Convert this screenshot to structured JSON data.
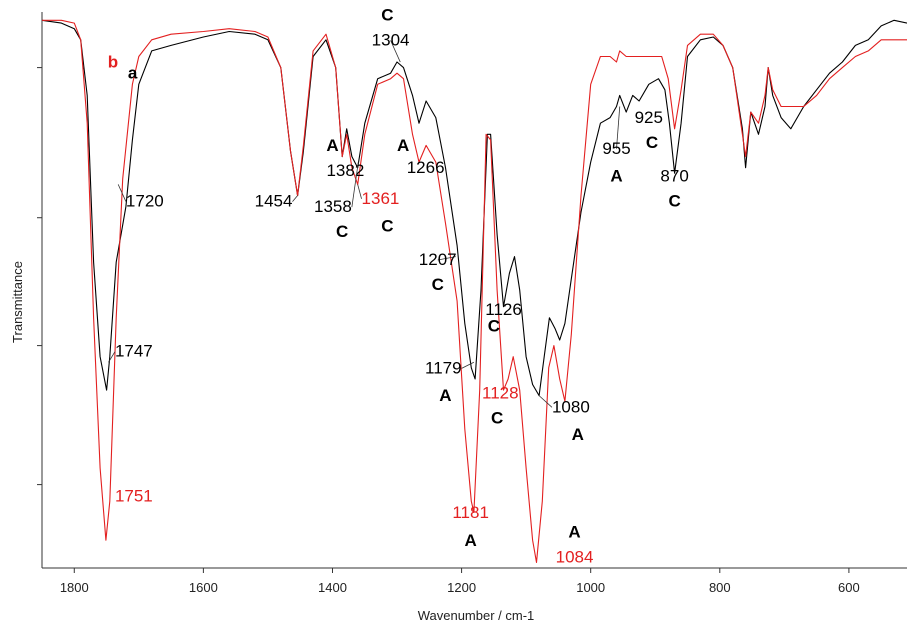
{
  "chart_data": {
    "type": "line",
    "xlabel": "Wavenumber / cm-1",
    "ylabel": "Transmittance",
    "xlim": [
      1850,
      510
    ],
    "x_reversed": true,
    "ylim": [
      0,
      1
    ],
    "y_tick_labels_shown": false,
    "grid": false,
    "x_ticks": [
      1800,
      1600,
      1400,
      1200,
      1000,
      800,
      600
    ],
    "series": [
      {
        "name": "a",
        "color": "#000000",
        "points": [
          [
            1850,
            0.015
          ],
          [
            1820,
            0.02
          ],
          [
            1800,
            0.03
          ],
          [
            1790,
            0.05
          ],
          [
            1780,
            0.15
          ],
          [
            1770,
            0.45
          ],
          [
            1760,
            0.62
          ],
          [
            1750,
            0.68
          ],
          [
            1745,
            0.62
          ],
          [
            1735,
            0.45
          ],
          [
            1720,
            0.35
          ],
          [
            1710,
            0.23
          ],
          [
            1700,
            0.13
          ],
          [
            1680,
            0.07
          ],
          [
            1650,
            0.06
          ],
          [
            1600,
            0.045
          ],
          [
            1560,
            0.035
          ],
          [
            1520,
            0.04
          ],
          [
            1500,
            0.05
          ],
          [
            1480,
            0.1
          ],
          [
            1465,
            0.25
          ],
          [
            1454,
            0.33
          ],
          [
            1445,
            0.25
          ],
          [
            1430,
            0.08
          ],
          [
            1410,
            0.05
          ],
          [
            1395,
            0.1
          ],
          [
            1385,
            0.26
          ],
          [
            1378,
            0.21
          ],
          [
            1370,
            0.26
          ],
          [
            1361,
            0.28
          ],
          [
            1350,
            0.2
          ],
          [
            1330,
            0.12
          ],
          [
            1310,
            0.11
          ],
          [
            1300,
            0.09
          ],
          [
            1290,
            0.1
          ],
          [
            1276,
            0.15
          ],
          [
            1266,
            0.2
          ],
          [
            1255,
            0.16
          ],
          [
            1240,
            0.19
          ],
          [
            1225,
            0.28
          ],
          [
            1207,
            0.42
          ],
          [
            1195,
            0.56
          ],
          [
            1185,
            0.64
          ],
          [
            1179,
            0.66
          ],
          [
            1170,
            0.5
          ],
          [
            1160,
            0.22
          ],
          [
            1155,
            0.22
          ],
          [
            1145,
            0.4
          ],
          [
            1135,
            0.53
          ],
          [
            1126,
            0.47
          ],
          [
            1118,
            0.44
          ],
          [
            1110,
            0.5
          ],
          [
            1100,
            0.62
          ],
          [
            1090,
            0.67
          ],
          [
            1080,
            0.69
          ],
          [
            1072,
            0.62
          ],
          [
            1064,
            0.55
          ],
          [
            1055,
            0.57
          ],
          [
            1048,
            0.59
          ],
          [
            1040,
            0.56
          ],
          [
            1030,
            0.48
          ],
          [
            1015,
            0.36
          ],
          [
            1000,
            0.27
          ],
          [
            985,
            0.2
          ],
          [
            970,
            0.19
          ],
          [
            960,
            0.17
          ],
          [
            955,
            0.15
          ],
          [
            945,
            0.18
          ],
          [
            935,
            0.15
          ],
          [
            925,
            0.16
          ],
          [
            910,
            0.13
          ],
          [
            895,
            0.12
          ],
          [
            885,
            0.14
          ],
          [
            878,
            0.2
          ],
          [
            870,
            0.29
          ],
          [
            860,
            0.2
          ],
          [
            850,
            0.08
          ],
          [
            830,
            0.05
          ],
          [
            810,
            0.045
          ],
          [
            795,
            0.06
          ],
          [
            780,
            0.1
          ],
          [
            765,
            0.21
          ],
          [
            760,
            0.28
          ],
          [
            752,
            0.18
          ],
          [
            740,
            0.22
          ],
          [
            730,
            0.17
          ],
          [
            725,
            0.1
          ],
          [
            718,
            0.15
          ],
          [
            705,
            0.19
          ],
          [
            690,
            0.21
          ],
          [
            670,
            0.17
          ],
          [
            650,
            0.14
          ],
          [
            630,
            0.11
          ],
          [
            610,
            0.09
          ],
          [
            590,
            0.06
          ],
          [
            570,
            0.05
          ],
          [
            550,
            0.025
          ],
          [
            530,
            0.015
          ],
          [
            510,
            0.02
          ]
        ]
      },
      {
        "name": "b",
        "color": "#e32020",
        "points": [
          [
            1850,
            0.015
          ],
          [
            1820,
            0.015
          ],
          [
            1800,
            0.02
          ],
          [
            1790,
            0.05
          ],
          [
            1780,
            0.2
          ],
          [
            1770,
            0.55
          ],
          [
            1760,
            0.82
          ],
          [
            1751,
            0.95
          ],
          [
            1745,
            0.88
          ],
          [
            1735,
            0.55
          ],
          [
            1725,
            0.3
          ],
          [
            1710,
            0.13
          ],
          [
            1700,
            0.08
          ],
          [
            1680,
            0.05
          ],
          [
            1650,
            0.04
          ],
          [
            1600,
            0.035
          ],
          [
            1560,
            0.03
          ],
          [
            1520,
            0.035
          ],
          [
            1500,
            0.045
          ],
          [
            1480,
            0.1
          ],
          [
            1465,
            0.25
          ],
          [
            1454,
            0.33
          ],
          [
            1445,
            0.24
          ],
          [
            1430,
            0.07
          ],
          [
            1410,
            0.04
          ],
          [
            1395,
            0.1
          ],
          [
            1385,
            0.26
          ],
          [
            1378,
            0.22
          ],
          [
            1370,
            0.28
          ],
          [
            1361,
            0.31
          ],
          [
            1350,
            0.22
          ],
          [
            1330,
            0.13
          ],
          [
            1310,
            0.12
          ],
          [
            1300,
            0.11
          ],
          [
            1290,
            0.12
          ],
          [
            1276,
            0.22
          ],
          [
            1266,
            0.27
          ],
          [
            1255,
            0.24
          ],
          [
            1240,
            0.27
          ],
          [
            1225,
            0.38
          ],
          [
            1207,
            0.52
          ],
          [
            1195,
            0.75
          ],
          [
            1185,
            0.88
          ],
          [
            1181,
            0.9
          ],
          [
            1172,
            0.68
          ],
          [
            1162,
            0.22
          ],
          [
            1155,
            0.23
          ],
          [
            1145,
            0.5
          ],
          [
            1135,
            0.68
          ],
          [
            1128,
            0.66
          ],
          [
            1120,
            0.62
          ],
          [
            1110,
            0.68
          ],
          [
            1100,
            0.82
          ],
          [
            1090,
            0.95
          ],
          [
            1084,
            0.99
          ],
          [
            1075,
            0.88
          ],
          [
            1065,
            0.64
          ],
          [
            1057,
            0.6
          ],
          [
            1048,
            0.66
          ],
          [
            1040,
            0.7
          ],
          [
            1030,
            0.58
          ],
          [
            1015,
            0.33
          ],
          [
            1000,
            0.13
          ],
          [
            985,
            0.08
          ],
          [
            970,
            0.08
          ],
          [
            960,
            0.09
          ],
          [
            955,
            0.07
          ],
          [
            945,
            0.08
          ],
          [
            930,
            0.08
          ],
          [
            915,
            0.08
          ],
          [
            900,
            0.08
          ],
          [
            890,
            0.08
          ],
          [
            880,
            0.12
          ],
          [
            870,
            0.21
          ],
          [
            860,
            0.14
          ],
          [
            850,
            0.06
          ],
          [
            830,
            0.04
          ],
          [
            810,
            0.04
          ],
          [
            795,
            0.06
          ],
          [
            780,
            0.1
          ],
          [
            765,
            0.22
          ],
          [
            760,
            0.26
          ],
          [
            752,
            0.18
          ],
          [
            740,
            0.2
          ],
          [
            730,
            0.15
          ],
          [
            725,
            0.1
          ],
          [
            718,
            0.14
          ],
          [
            705,
            0.17
          ],
          [
            690,
            0.17
          ],
          [
            670,
            0.17
          ],
          [
            650,
            0.15
          ],
          [
            630,
            0.12
          ],
          [
            610,
            0.1
          ],
          [
            590,
            0.08
          ],
          [
            570,
            0.07
          ],
          [
            550,
            0.05
          ],
          [
            530,
            0.05
          ],
          [
            510,
            0.05
          ]
        ]
      }
    ],
    "annotations": [
      {
        "text": "b",
        "color": "#e32020",
        "bold": true,
        "x": 1732,
        "y": 0.1,
        "anchor": "end",
        "plain": true
      },
      {
        "text": "a",
        "color": "#000000",
        "bold": true,
        "x": 1717,
        "y": 0.12,
        "anchor": "start",
        "plain": true
      },
      {
        "text": "1720",
        "color": "#000000",
        "bold": false,
        "x": 1720,
        "y": 0.35,
        "anchor": "start",
        "leader": [
          1732,
          0.31
        ]
      },
      {
        "text": "1747",
        "color": "#000000",
        "bold": false,
        "x": 1737,
        "y": 0.62,
        "anchor": "start",
        "leader": [
          1747,
          0.63
        ]
      },
      {
        "text": "1751",
        "color": "#e32020",
        "bold": false,
        "x": 1737,
        "y": 0.88,
        "anchor": "start"
      },
      {
        "text": "1454",
        "color": "#000000",
        "bold": false,
        "x": 1462,
        "y": 0.35,
        "anchor": "end",
        "leader": [
          1454,
          0.33
        ]
      },
      {
        "text": "A",
        "color": "#000000",
        "bold": true,
        "x": 1400,
        "y": 0.25,
        "anchor": "middle"
      },
      {
        "text": "1382",
        "color": "#000000",
        "bold": false,
        "x": 1380,
        "y": 0.295,
        "anchor": "middle"
      },
      {
        "text": "1358",
        "color": "#000000",
        "bold": false,
        "x": 1370,
        "y": 0.36,
        "anchor": "end",
        "leader": [
          1360,
          0.27
        ]
      },
      {
        "text": "C",
        "color": "#000000",
        "bold": true,
        "x": 1385,
        "y": 0.405,
        "anchor": "middle"
      },
      {
        "text": "1361",
        "color": "#e32020",
        "bold": false,
        "x": 1355,
        "y": 0.345,
        "anchor": "start",
        "leader": [
          1361,
          0.31
        ]
      },
      {
        "text": "C",
        "color": "#000000",
        "bold": true,
        "x": 1315,
        "y": 0.395,
        "anchor": "middle"
      },
      {
        "text": "C",
        "color": "#000000",
        "bold": true,
        "x": 1315,
        "y": 0.015,
        "anchor": "middle"
      },
      {
        "text": "1304",
        "color": "#000000",
        "bold": false,
        "x": 1310,
        "y": 0.06,
        "anchor": "middle",
        "leader": [
          1295,
          0.09
        ]
      },
      {
        "text": "A",
        "color": "#000000",
        "bold": true,
        "x": 1300,
        "y": 0.25,
        "anchor": "start"
      },
      {
        "text": "1266",
        "color": "#000000",
        "bold": false,
        "x": 1285,
        "y": 0.29,
        "anchor": "start"
      },
      {
        "text": "1207",
        "color": "#000000",
        "bold": false,
        "x": 1237,
        "y": 0.455,
        "anchor": "middle",
        "leader": [
          1209,
          0.44
        ]
      },
      {
        "text": "C",
        "color": "#000000",
        "bold": true,
        "x": 1237,
        "y": 0.5,
        "anchor": "middle"
      },
      {
        "text": "1179",
        "color": "#000000",
        "bold": false,
        "x": 1200,
        "y": 0.65,
        "anchor": "end",
        "leader": [
          1181,
          0.63
        ]
      },
      {
        "text": "A",
        "color": "#000000",
        "bold": true,
        "x": 1225,
        "y": 0.7,
        "anchor": "middle"
      },
      {
        "text": "1181",
        "color": "#e32020",
        "bold": false,
        "x": 1186,
        "y": 0.91,
        "anchor": "middle"
      },
      {
        "text": "A",
        "color": "#000000",
        "bold": true,
        "x": 1186,
        "y": 0.96,
        "anchor": "middle"
      },
      {
        "text": "C",
        "color": "#000000",
        "bold": true,
        "x": 1150,
        "y": 0.575,
        "anchor": "middle"
      },
      {
        "text": "1126",
        "color": "#000000",
        "bold": false,
        "x": 1135,
        "y": 0.545,
        "anchor": "middle"
      },
      {
        "text": "1128",
        "color": "#e32020",
        "bold": false,
        "x": 1140,
        "y": 0.695,
        "anchor": "middle"
      },
      {
        "text": "C",
        "color": "#000000",
        "bold": true,
        "x": 1145,
        "y": 0.74,
        "anchor": "middle"
      },
      {
        "text": "1080",
        "color": "#000000",
        "bold": false,
        "x": 1060,
        "y": 0.72,
        "anchor": "start",
        "leader": [
          1080,
          0.69
        ]
      },
      {
        "text": "A",
        "color": "#000000",
        "bold": true,
        "x": 1020,
        "y": 0.77,
        "anchor": "middle"
      },
      {
        "text": "A",
        "color": "#000000",
        "bold": true,
        "x": 1025,
        "y": 0.945,
        "anchor": "middle"
      },
      {
        "text": "1084",
        "color": "#e32020",
        "bold": false,
        "x": 1025,
        "y": 0.99,
        "anchor": "middle"
      },
      {
        "text": "925",
        "color": "#000000",
        "bold": false,
        "x": 910,
        "y": 0.2,
        "anchor": "middle"
      },
      {
        "text": "C",
        "color": "#000000",
        "bold": true,
        "x": 905,
        "y": 0.245,
        "anchor": "middle"
      },
      {
        "text": "955",
        "color": "#000000",
        "bold": false,
        "x": 960,
        "y": 0.255,
        "anchor": "middle",
        "leader": [
          955,
          0.17
        ]
      },
      {
        "text": "A",
        "color": "#000000",
        "bold": true,
        "x": 960,
        "y": 0.305,
        "anchor": "middle"
      },
      {
        "text": "870",
        "color": "#000000",
        "bold": false,
        "x": 870,
        "y": 0.305,
        "anchor": "middle"
      },
      {
        "text": "C",
        "color": "#000000",
        "bold": true,
        "x": 870,
        "y": 0.35,
        "anchor": "middle"
      }
    ]
  }
}
